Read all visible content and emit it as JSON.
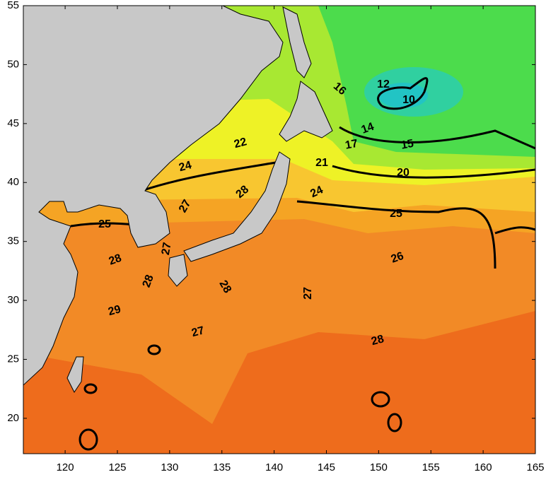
{
  "map": {
    "xlim": [
      116,
      165
    ],
    "ylim": [
      17,
      55
    ],
    "xticks": [
      120,
      125,
      130,
      135,
      140,
      145,
      150,
      155,
      160,
      165
    ],
    "yticks": [
      20,
      25,
      30,
      35,
      40,
      45,
      50,
      55
    ],
    "contour_labels": [
      16,
      12,
      10,
      14,
      17,
      15,
      22,
      21,
      20,
      24,
      28,
      27,
      24,
      25,
      25,
      27,
      28,
      26,
      28,
      28,
      27,
      29,
      27,
      28
    ]
  }
}
